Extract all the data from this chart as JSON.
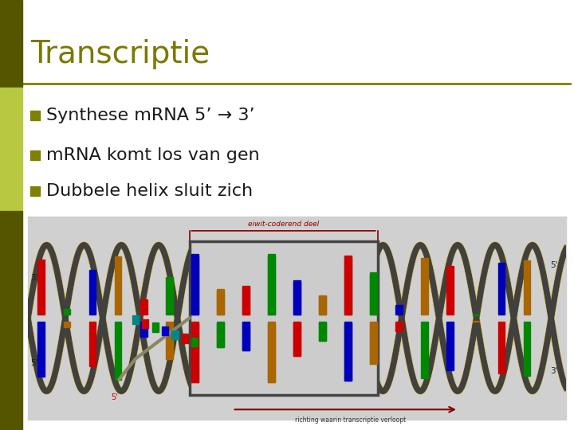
{
  "title": "Transcriptie",
  "title_color": "#7a7a00",
  "title_fontsize": 28,
  "separator_color": "#808000",
  "bullet_color": "#808000",
  "bullet_text_color": "#1a1a1a",
  "bullet_fontsize": 16,
  "bullets": [
    "Synthese mRNA 5’ → 3’",
    "mRNA komt los van gen",
    "Dubbele helix sluit zich"
  ],
  "left_bar_dark": "#555500",
  "left_bar_light": "#b8c840",
  "background_color": "#ffffff",
  "image_bg": "#d0d0d0",
  "annotation_color": "#8b0000",
  "arrow_color": "#8b0000",
  "label_color": "#333333"
}
